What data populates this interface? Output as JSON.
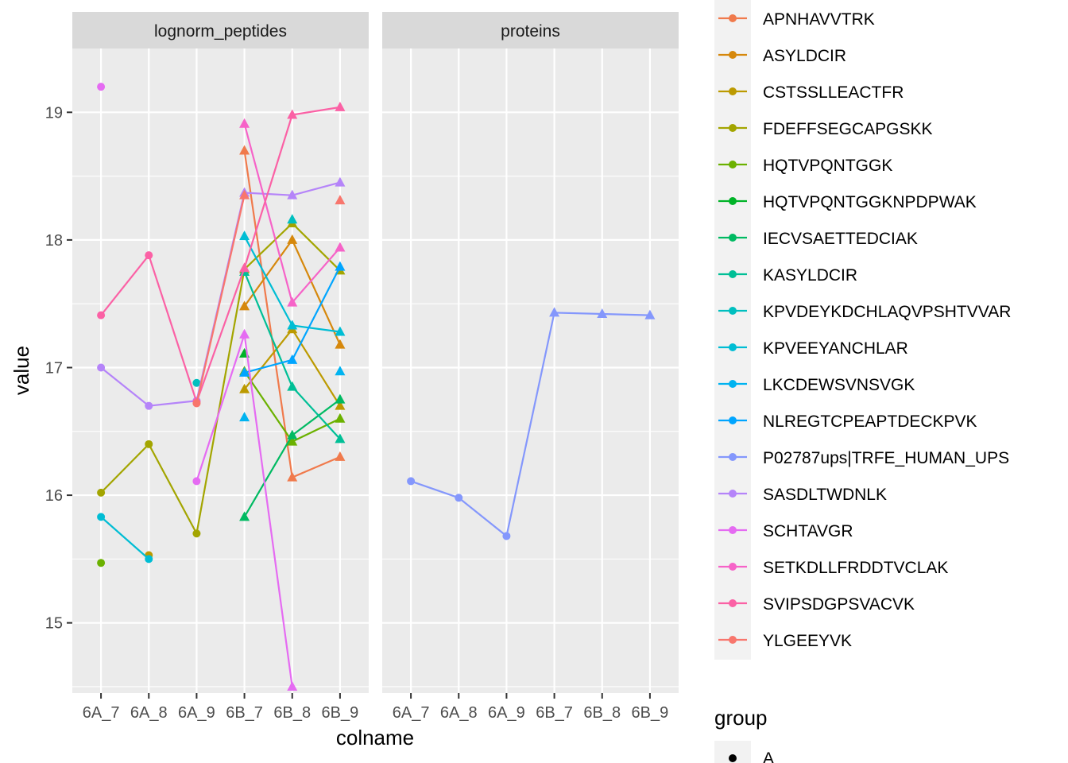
{
  "chart_data": {
    "type": "line",
    "xlabel": "colname",
    "ylabel": "value",
    "ylim": [
      14.45,
      19.5
    ],
    "yticks": [
      15,
      16,
      17,
      18,
      19
    ],
    "grid": true,
    "legend_placement": "right",
    "x": [
      "6A_7",
      "6A_8",
      "6A_9",
      "6B_7",
      "6B_8",
      "6B_9"
    ],
    "facets": [
      "lognorm_peptides",
      "proteins"
    ],
    "legend": [
      {
        "name": "APNHAVVTRK",
        "color": "#F07A4C"
      },
      {
        "name": "ASYLDCIR",
        "color": "#D6880C"
      },
      {
        "name": "CSTSSLLEACTFR",
        "color": "#BC9A00"
      },
      {
        "name": "FDEFFSEGCAPGSKK",
        "color": "#A3A500"
      },
      {
        "name": "HQTVPQNTGGK",
        "color": "#6BB100"
      },
      {
        "name": "HQTVPQNTGGKNPDPWAK",
        "color": "#00B328"
      },
      {
        "name": "IECVSAETTEDCIAK",
        "color": "#00BA62"
      },
      {
        "name": "KASYLDCIR",
        "color": "#00BF96"
      },
      {
        "name": "KPVDEYKDCHLAQVPSHTVVAR",
        "color": "#00BFBF"
      },
      {
        "name": "KPVEEYANCHLAR",
        "color": "#00BDD4"
      },
      {
        "name": "LKCDEWSVNSVGK",
        "color": "#00B3F0"
      },
      {
        "name": "NLREGTCPEAPTDECKPVK",
        "color": "#00A5FF"
      },
      {
        "name": "P02787ups|TRFE_HUMAN_UPS",
        "color": "#8497FC"
      },
      {
        "name": "SASDLTWDNLK",
        "color": "#B584F9"
      },
      {
        "name": "SCHTAVGR",
        "color": "#E56BF2"
      },
      {
        "name": "SETKDLLFRDDTVCLAK",
        "color": "#F663C8"
      },
      {
        "name": "SVIPSDGPSVACVK",
        "color": "#FB61A5"
      },
      {
        "name": "YLGEEYVK",
        "color": "#F8766D"
      }
    ],
    "group_legend": {
      "title": "group",
      "items": [
        {
          "label": "A",
          "shape": "circle"
        }
      ]
    },
    "series": [
      {
        "name": "APNHAVVTRK",
        "facet": "lognorm_peptides",
        "color": "#F07A4C",
        "values": [
          null,
          null,
          null,
          18.7,
          16.14,
          16.3
        ]
      },
      {
        "name": "ASYLDCIR",
        "facet": "lognorm_peptides",
        "color": "#D6880C",
        "values": [
          null,
          null,
          null,
          17.48,
          18.0,
          17.18
        ]
      },
      {
        "name": "CSTSSLLEACTFR",
        "facet": "lognorm_peptides",
        "color": "#BC9A00",
        "values": [
          null,
          15.53,
          null,
          16.83,
          17.3,
          16.7
        ]
      },
      {
        "name": "FDEFFSEGCAPGSKK",
        "facet": "lognorm_peptides",
        "color": "#A3A500",
        "values": [
          16.02,
          16.4,
          15.7,
          17.77,
          18.13,
          17.76
        ]
      },
      {
        "name": "HQTVPQNTGGK",
        "facet": "lognorm_peptides",
        "color": "#6BB100",
        "values": [
          15.47,
          null,
          null,
          16.97,
          16.42,
          16.6
        ]
      },
      {
        "name": "HQTVPQNTGGKNPDPWAK",
        "facet": "lognorm_peptides",
        "color": "#00B328",
        "values": [
          null,
          null,
          null,
          17.11,
          null,
          null
        ]
      },
      {
        "name": "IECVSAETTEDCIAK",
        "facet": "lognorm_peptides",
        "color": "#00BA62",
        "values": [
          null,
          null,
          null,
          15.83,
          16.47,
          16.75
        ]
      },
      {
        "name": "KASYLDCIR",
        "facet": "lognorm_peptides",
        "color": "#00BF96",
        "values": [
          null,
          null,
          null,
          17.75,
          16.85,
          16.44
        ]
      },
      {
        "name": "KPVDEYKDCHLAQVPSHTVVAR",
        "facet": "lognorm_peptides",
        "color": "#00BFBF",
        "values": [
          null,
          null,
          16.88,
          null,
          18.16,
          null
        ]
      },
      {
        "name": "KPVEEYANCHLAR",
        "facet": "lognorm_peptides",
        "color": "#00BDD4",
        "values": [
          15.83,
          15.5,
          null,
          18.03,
          17.33,
          17.28
        ]
      },
      {
        "name": "LKCDEWSVNSVGK",
        "facet": "lognorm_peptides",
        "color": "#00B3F0",
        "values": [
          null,
          null,
          null,
          16.61,
          null,
          16.97
        ]
      },
      {
        "name": "NLREGTCPEAPTDECKPVK",
        "facet": "lognorm_peptides",
        "color": "#00A5FF",
        "values": [
          null,
          null,
          null,
          16.96,
          17.06,
          17.79
        ]
      },
      {
        "name": "P02787ups|TRFE_HUMAN_UPS",
        "facet": "proteins",
        "color": "#8497FC",
        "values": [
          16.11,
          15.98,
          15.68,
          17.43,
          17.42,
          17.41
        ]
      },
      {
        "name": "SASDLTWDNLK",
        "facet": "lognorm_peptides",
        "color": "#B584F9",
        "values": [
          17.0,
          16.7,
          16.74,
          18.37,
          18.35,
          18.45
        ]
      },
      {
        "name": "SCHTAVGR",
        "facet": "lognorm_peptides",
        "color": "#E56BF2",
        "values": [
          19.2,
          null,
          16.11,
          17.26,
          14.5,
          null
        ]
      },
      {
        "name": "SETKDLLFRDDTVCLAK",
        "facet": "lognorm_peptides",
        "color": "#F663C8",
        "values": [
          null,
          null,
          null,
          18.91,
          17.51,
          17.94
        ]
      },
      {
        "name": "SVIPSDGPSVACVK",
        "facet": "lognorm_peptides",
        "color": "#FB61A5",
        "values": [
          17.41,
          17.88,
          16.73,
          17.78,
          18.98,
          19.04
        ]
      },
      {
        "name": "YLGEEYVK",
        "facet": "lognorm_peptides",
        "color": "#F8766D",
        "values": [
          null,
          null,
          16.72,
          18.35,
          null,
          18.31
        ]
      }
    ]
  }
}
